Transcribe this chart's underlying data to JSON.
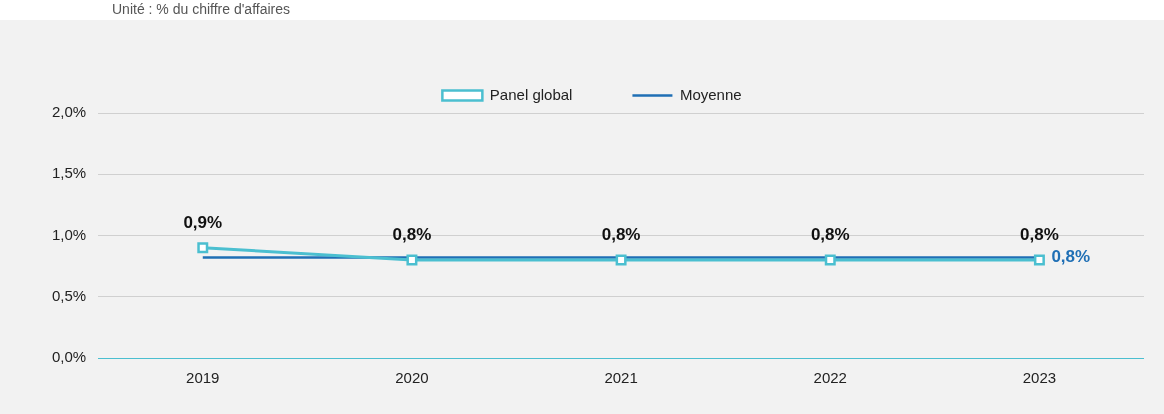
{
  "chart_data": {
    "type": "line",
    "subtitle": "Unité : % du chiffre d'affaires",
    "categories": [
      "2019",
      "2020",
      "2021",
      "2022",
      "2023"
    ],
    "series": [
      {
        "name": "Panel global",
        "color": "#4bbfd0",
        "marker": "square",
        "values": [
          0.9,
          0.8,
          0.8,
          0.8,
          0.8
        ],
        "value_labels": [
          "0,9%",
          "0,8%",
          "0,8%",
          "0,8%",
          "0,8%"
        ]
      },
      {
        "name": "Moyenne",
        "color": "#1f6fb5",
        "marker": "none",
        "values": [
          0.82,
          0.82,
          0.82,
          0.82,
          0.82
        ],
        "value_labels": [
          null,
          null,
          null,
          null,
          "0,8%"
        ]
      }
    ],
    "ylim": [
      0,
      2
    ],
    "yticks": [
      {
        "value": 0,
        "label": "0,0%"
      },
      {
        "value": 0.5,
        "label": "0,5%"
      },
      {
        "value": 1,
        "label": "1,0%"
      },
      {
        "value": 1.5,
        "label": "1,5%"
      },
      {
        "value": 2,
        "label": "2,0%"
      }
    ],
    "grid": "y",
    "legend": "top"
  }
}
